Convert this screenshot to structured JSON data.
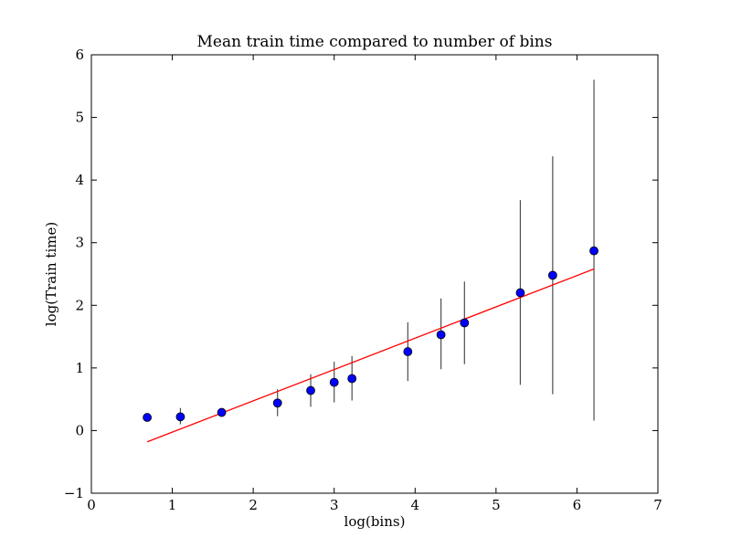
{
  "chart_data": {
    "type": "scatter",
    "title": "Mean train time compared to number of bins",
    "xlabel": "log(bins)",
    "ylabel": "log(Train time)",
    "xlim": [
      0,
      7
    ],
    "ylim": [
      -1,
      6
    ],
    "xticks": [
      0,
      1,
      2,
      3,
      4,
      5,
      6,
      7
    ],
    "yticks": [
      -1,
      0,
      1,
      2,
      3,
      4,
      5,
      6
    ],
    "xtick_labels": [
      "0",
      "1",
      "2",
      "3",
      "4",
      "5",
      "6",
      "7"
    ],
    "ytick_labels": [
      "−1",
      "0",
      "1",
      "2",
      "3",
      "4",
      "5",
      "6"
    ],
    "grid": false,
    "series": [
      {
        "kind": "errorbar",
        "marker_color": "#0000ff",
        "errorbar_color": "#4d4d4d",
        "points": [
          {
            "x": 0.69,
            "y": 0.21,
            "err_low": 0.0,
            "err_high": 0.0
          },
          {
            "x": 1.1,
            "y": 0.22,
            "err_low": 0.12,
            "err_high": 0.14
          },
          {
            "x": 1.61,
            "y": 0.29,
            "err_low": 0.02,
            "err_high": 0.02
          },
          {
            "x": 2.3,
            "y": 0.44,
            "err_low": 0.21,
            "err_high": 0.22
          },
          {
            "x": 2.71,
            "y": 0.64,
            "err_low": 0.26,
            "err_high": 0.26
          },
          {
            "x": 3.0,
            "y": 0.77,
            "err_low": 0.32,
            "err_high": 0.33
          },
          {
            "x": 3.22,
            "y": 0.83,
            "err_low": 0.35,
            "err_high": 0.36
          },
          {
            "x": 3.91,
            "y": 1.26,
            "err_low": 0.47,
            "err_high": 0.47
          },
          {
            "x": 4.32,
            "y": 1.53,
            "err_low": 0.55,
            "err_high": 0.58
          },
          {
            "x": 4.61,
            "y": 1.72,
            "err_low": 0.66,
            "err_high": 0.66
          },
          {
            "x": 5.3,
            "y": 2.2,
            "err_low": 1.47,
            "err_high": 1.48
          },
          {
            "x": 5.7,
            "y": 2.48,
            "err_low": 1.9,
            "err_high": 1.9
          },
          {
            "x": 6.21,
            "y": 2.87,
            "err_low": 2.71,
            "err_high": 2.73
          }
        ]
      },
      {
        "kind": "line",
        "color": "#ff0000",
        "x": [
          0.69,
          6.21
        ],
        "y": [
          -0.18,
          2.58
        ]
      }
    ]
  }
}
